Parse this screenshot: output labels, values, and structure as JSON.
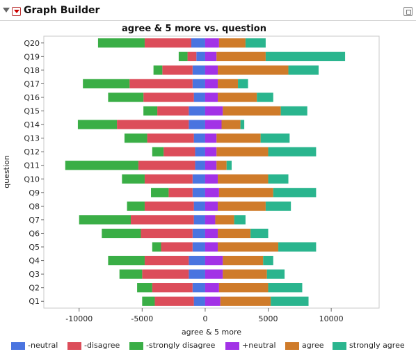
{
  "header": {
    "title": "Graph Builder"
  },
  "chart_data": {
    "type": "bar",
    "stacked": "diverging",
    "orientation": "horizontal",
    "title": "agree & 5 more vs. question",
    "xlabel": "agree & 5 more",
    "ylabel": "question",
    "xlim": [
      -12800,
      13800
    ],
    "xticks": [
      -10000,
      -5000,
      0,
      5000,
      10000
    ],
    "xtick_labels": [
      "-10000",
      "-5000",
      "0",
      "5000",
      "10000"
    ],
    "grid": false,
    "legend_position": "bottom",
    "categories": [
      "Q20",
      "Q19",
      "Q18",
      "Q17",
      "Q16",
      "Q15",
      "Q14",
      "Q13",
      "Q12",
      "Q11",
      "Q10",
      "Q9",
      "Q8",
      "Q7",
      "Q6",
      "Q5",
      "Q4",
      "Q3",
      "Q2",
      "Q1"
    ],
    "series": [
      {
        "name": "-neutral",
        "color": "#4a74e0",
        "direction": "negative",
        "values": [
          1100,
          700,
          1000,
          1000,
          900,
          1300,
          1300,
          900,
          800,
          800,
          1000,
          1000,
          900,
          900,
          1000,
          1000,
          1300,
          1300,
          1000,
          900
        ]
      },
      {
        "name": "-disagree",
        "color": "#dc4d5a",
        "direction": "negative",
        "values": [
          3700,
          700,
          2400,
          5000,
          4000,
          2500,
          5700,
          3700,
          2500,
          4500,
          3800,
          1900,
          3900,
          5000,
          4100,
          2500,
          3500,
          3700,
          3200,
          3100
        ]
      },
      {
        "name": "-strongly disagree",
        "color": "#3aae46",
        "direction": "negative",
        "values": [
          3700,
          700,
          700,
          3700,
          2800,
          1100,
          3100,
          1800,
          900,
          5800,
          1800,
          1400,
          1400,
          4100,
          3100,
          700,
          2900,
          1800,
          1200,
          1000
        ]
      },
      {
        "name": "+neutral",
        "color": "#a232e6",
        "direction": "positive",
        "values": [
          1100,
          900,
          1000,
          1000,
          1000,
          1400,
          1300,
          900,
          900,
          900,
          1000,
          1100,
          1000,
          800,
          1000,
          1000,
          1400,
          1400,
          1100,
          1200
        ]
      },
      {
        "name": "agree",
        "color": "#cf7b2a",
        "direction": "positive",
        "values": [
          2100,
          3900,
          5600,
          1600,
          3100,
          4600,
          1500,
          3500,
          4100,
          800,
          4000,
          4300,
          3800,
          1500,
          2600,
          4800,
          3200,
          3500,
          3900,
          4000
        ]
      },
      {
        "name": "strongly agree",
        "color": "#2ab58e",
        "direction": "positive",
        "values": [
          1600,
          6300,
          2400,
          800,
          1300,
          2100,
          300,
          2300,
          3800,
          400,
          1600,
          3400,
          2000,
          900,
          1400,
          3000,
          800,
          1400,
          2700,
          3000
        ]
      }
    ]
  }
}
